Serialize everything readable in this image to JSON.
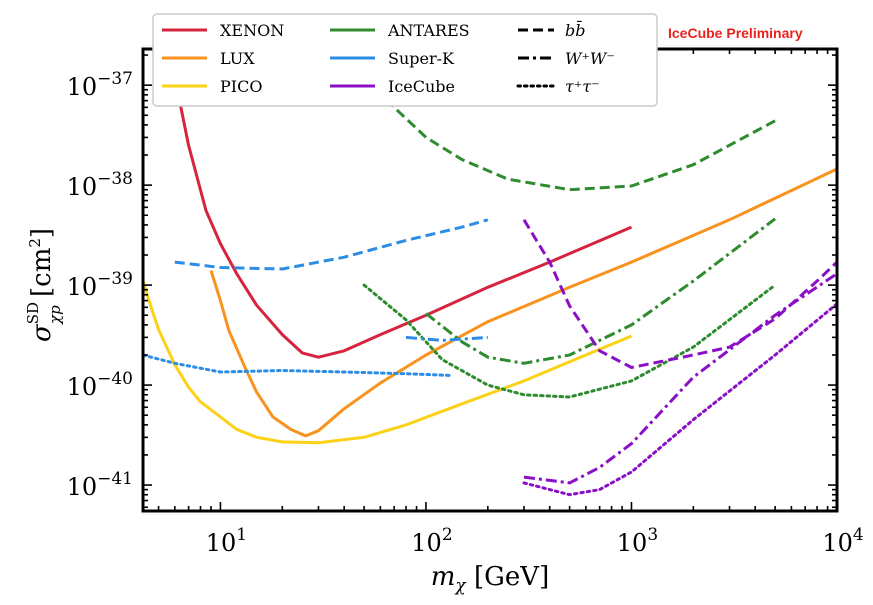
{
  "chart_data": {
    "type": "line",
    "title": "",
    "annotation": "IceCube Preliminary",
    "annotation_color": "#e8231d",
    "xlabel": "m_χ [GeV]",
    "ylabel": "σ^SD_χp [cm²]",
    "x_scale": "log",
    "y_scale": "log",
    "xlim": [
      4.2,
      10000
    ],
    "ylim": [
      5.5e-42,
      2.3e-37
    ],
    "x_ticks": [
      {
        "value": 10,
        "base": "10",
        "exp": "1"
      },
      {
        "value": 100,
        "base": "10",
        "exp": "2"
      },
      {
        "value": 1000,
        "base": "10",
        "exp": "3"
      },
      {
        "value": 10000,
        "base": "10",
        "exp": "4"
      }
    ],
    "y_ticks": [
      {
        "value": 1e-41,
        "base": "10",
        "exp": "−41"
      },
      {
        "value": 1e-40,
        "base": "10",
        "exp": "−40"
      },
      {
        "value": 1e-39,
        "base": "10",
        "exp": "−39"
      },
      {
        "value": 1e-38,
        "base": "10",
        "exp": "−38"
      },
      {
        "value": 1e-37,
        "base": "10",
        "exp": "−37"
      }
    ],
    "legend_position": "top",
    "legend_experiments": [
      {
        "name": "XENON",
        "color": "#d6243f"
      },
      {
        "name": "LUX",
        "color": "#f7931e"
      },
      {
        "name": "PICO",
        "color": "#fcd116"
      },
      {
        "name": "ANTARES",
        "color": "#2e8b2e"
      },
      {
        "name": "Super-K",
        "color": "#2b8de6"
      },
      {
        "name": "IceCube",
        "color": "#8a10c8"
      }
    ],
    "legend_channels": [
      {
        "name": "bb̄",
        "dash": "dashed"
      },
      {
        "name": "W⁺W⁻",
        "dash": "dashdot"
      },
      {
        "name": "τ⁺τ⁻",
        "dash": "dotted"
      }
    ],
    "series": [
      {
        "experiment": "XENON",
        "channel": "",
        "color": "#d6243f",
        "dash": "solid",
        "points": [
          [
            6,
            1.2e-37
          ],
          [
            7,
            2.5e-38
          ],
          [
            8.5,
            5.6e-39
          ],
          [
            10,
            2.6e-39
          ],
          [
            12,
            1.3e-39
          ],
          [
            15,
            6.3e-40
          ],
          [
            20,
            3.2e-40
          ],
          [
            25,
            2.1e-40
          ],
          [
            30,
            1.9e-40
          ],
          [
            40,
            2.2e-40
          ],
          [
            60,
            3.2e-40
          ],
          [
            100,
            5e-40
          ],
          [
            200,
            9.5e-40
          ],
          [
            400,
            1.7e-39
          ],
          [
            1000,
            3.8e-39
          ]
        ]
      },
      {
        "experiment": "LUX",
        "channel": "",
        "color": "#f7931e",
        "dash": "solid",
        "points": [
          [
            9,
            1.4e-39
          ],
          [
            10,
            7e-40
          ],
          [
            11,
            3.5e-40
          ],
          [
            13,
            1.6e-40
          ],
          [
            15,
            8.5e-41
          ],
          [
            18,
            4.8e-41
          ],
          [
            22,
            3.6e-41
          ],
          [
            26,
            3.1e-41
          ],
          [
            30,
            3.5e-41
          ],
          [
            40,
            5.8e-41
          ],
          [
            60,
            1.05e-40
          ],
          [
            100,
            2e-40
          ],
          [
            200,
            4.3e-40
          ],
          [
            500,
            9.5e-40
          ],
          [
            1000,
            1.7e-39
          ],
          [
            3000,
            4.5e-39
          ],
          [
            10000,
            1.45e-38
          ]
        ]
      },
      {
        "experiment": "PICO",
        "channel": "",
        "color": "#fcd116",
        "dash": "solid",
        "points": [
          [
            4.2,
            1.1e-39
          ],
          [
            4.6,
            6e-40
          ],
          [
            5,
            3.6e-40
          ],
          [
            6,
            1.6e-40
          ],
          [
            7,
            9.5e-41
          ],
          [
            8,
            6.8e-41
          ],
          [
            10,
            4.8e-41
          ],
          [
            12,
            3.6e-41
          ],
          [
            15,
            3e-41
          ],
          [
            20,
            2.7e-41
          ],
          [
            30,
            2.65e-41
          ],
          [
            50,
            3e-41
          ],
          [
            80,
            4e-41
          ],
          [
            150,
            6.5e-41
          ],
          [
            300,
            1.1e-40
          ],
          [
            600,
            2e-40
          ],
          [
            1000,
            3.1e-40
          ]
        ]
      },
      {
        "experiment": "ANTARES",
        "channel": "bb̄",
        "color": "#2e8b2e",
        "dash": "dashed",
        "points": [
          [
            50,
            1.15e-37
          ],
          [
            70,
            6e-38
          ],
          [
            100,
            3e-38
          ],
          [
            150,
            1.8e-38
          ],
          [
            250,
            1.15e-38
          ],
          [
            500,
            9e-39
          ],
          [
            1000,
            9.8e-39
          ],
          [
            2000,
            1.6e-38
          ],
          [
            5000,
            4.4e-38
          ]
        ]
      },
      {
        "experiment": "ANTARES",
        "channel": "W⁺W⁻",
        "color": "#2e8b2e",
        "dash": "dashdot",
        "points": [
          [
            100,
            5.2e-40
          ],
          [
            150,
            2.7e-40
          ],
          [
            200,
            1.9e-40
          ],
          [
            300,
            1.65e-40
          ],
          [
            500,
            2e-40
          ],
          [
            1000,
            4e-40
          ],
          [
            2000,
            1.1e-39
          ],
          [
            5000,
            4.6e-39
          ]
        ]
      },
      {
        "experiment": "ANTARES",
        "channel": "τ⁺τ⁻",
        "color": "#2e8b2e",
        "dash": "dotted",
        "points": [
          [
            50,
            1e-39
          ],
          [
            80,
            4.5e-40
          ],
          [
            120,
            1.8e-40
          ],
          [
            200,
            1e-40
          ],
          [
            300,
            8e-41
          ],
          [
            500,
            7.6e-41
          ],
          [
            1000,
            1.1e-40
          ],
          [
            2000,
            2.4e-40
          ],
          [
            5000,
            1e-39
          ]
        ]
      },
      {
        "experiment": "Super-K",
        "channel": "bb̄",
        "color": "#2b8de6",
        "dash": "dashed",
        "points": [
          [
            6,
            1.7e-39
          ],
          [
            10,
            1.5e-39
          ],
          [
            20,
            1.45e-39
          ],
          [
            40,
            1.9e-39
          ],
          [
            80,
            2.8e-39
          ],
          [
            150,
            3.8e-39
          ],
          [
            200,
            4.5e-39
          ]
        ]
      },
      {
        "experiment": "Super-K",
        "channel": "τ⁺τ⁻",
        "color": "#2b8de6",
        "dash": "dotted",
        "points": [
          [
            4.2,
            2e-40
          ],
          [
            6,
            1.65e-40
          ],
          [
            10,
            1.35e-40
          ],
          [
            20,
            1.4e-40
          ],
          [
            40,
            1.35e-40
          ],
          [
            80,
            1.3e-40
          ],
          [
            130,
            1.25e-40
          ]
        ]
      },
      {
        "experiment": "Super-K",
        "channel": "W⁺W⁻",
        "color": "#2b8de6",
        "dash": "dashdot",
        "points": [
          [
            80,
            3e-40
          ],
          [
            120,
            2.8e-40
          ],
          [
            200,
            3e-40
          ]
        ]
      },
      {
        "experiment": "IceCube",
        "channel": "bb̄",
        "color": "#8a10c8",
        "dash": "dashed",
        "points": [
          [
            300,
            4.5e-39
          ],
          [
            400,
            1.7e-39
          ],
          [
            500,
            6.2e-40
          ],
          [
            700,
            2.2e-40
          ],
          [
            1000,
            1.5e-40
          ],
          [
            2000,
            2e-40
          ],
          [
            3000,
            2.4e-40
          ],
          [
            5000,
            4.6e-40
          ],
          [
            8000,
            1.1e-39
          ],
          [
            10000,
            1.7e-39
          ]
        ]
      },
      {
        "experiment": "IceCube",
        "channel": "W⁺W⁻",
        "color": "#8a10c8",
        "dash": "dashdot",
        "points": [
          [
            300,
            1.2e-41
          ],
          [
            500,
            1.05e-41
          ],
          [
            700,
            1.5e-41
          ],
          [
            1000,
            2.6e-41
          ],
          [
            2000,
            1.2e-40
          ],
          [
            5000,
            5e-40
          ],
          [
            10000,
            1.3e-39
          ]
        ]
      },
      {
        "experiment": "IceCube",
        "channel": "τ⁺τ⁻",
        "color": "#8a10c8",
        "dash": "dotted",
        "points": [
          [
            300,
            1.05e-41
          ],
          [
            500,
            8e-42
          ],
          [
            700,
            9e-42
          ],
          [
            1000,
            1.35e-41
          ],
          [
            2000,
            4.5e-41
          ],
          [
            5000,
            2e-40
          ],
          [
            10000,
            6.5e-40
          ]
        ]
      }
    ]
  }
}
